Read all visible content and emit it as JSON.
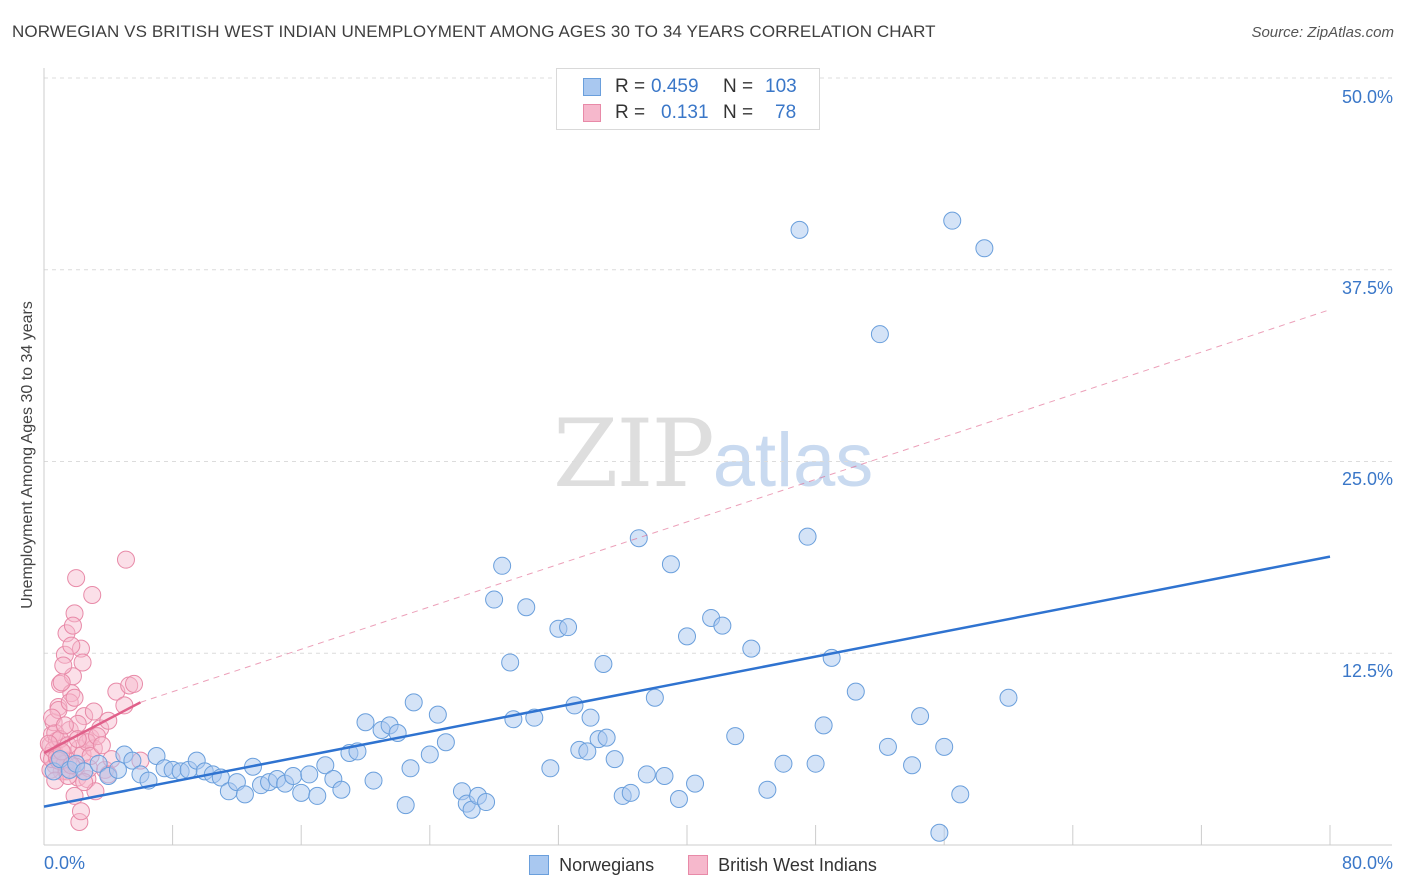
{
  "header": {
    "title": "NORWEGIAN VS BRITISH WEST INDIAN UNEMPLOYMENT AMONG AGES 30 TO 34 YEARS CORRELATION CHART",
    "source": "Source: ZipAtlas.com"
  },
  "watermark": {
    "part1": "ZIP",
    "part2": "atlas"
  },
  "legend_top": {
    "rows": [
      {
        "r_label": "R =",
        "r_value": "0.459",
        "n_label": "N =",
        "n_value": "103"
      },
      {
        "r_label": "R =",
        "r_value": "0.131",
        "n_label": "N =",
        "n_value": "78"
      }
    ]
  },
  "legend_bottom": {
    "series1": "Norwegians",
    "series2": "British West Indians"
  },
  "axis": {
    "y_title": "Unemployment Among Ages 30 to 34 years",
    "x_min_label": "0.0%",
    "x_max_label": "80.0%",
    "y_ticks": [
      "50.0%",
      "37.5%",
      "25.0%",
      "12.5%"
    ]
  },
  "colors": {
    "blue_fill": "#a9c8f0",
    "blue_stroke": "#6a9fdc",
    "blue_line": "#2f73d0",
    "pink_fill": "#f6b8cc",
    "pink_stroke": "#e88aa8",
    "pink_line": "#e0608a",
    "text_accent": "#3a77c8"
  },
  "chart_data": {
    "type": "scatter",
    "title": "NORWEGIAN VS BRITISH WEST INDIAN UNEMPLOYMENT AMONG AGES 30 TO 34 YEARS CORRELATION CHART",
    "xlabel": "",
    "ylabel": "Unemployment Among Ages 30 to 34 years",
    "xlim": [
      0,
      80
    ],
    "ylim": [
      0,
      50
    ],
    "y_gridlines": [
      12.5,
      25.0,
      37.5,
      50.0
    ],
    "grid": "horizontal dashed",
    "series": [
      {
        "name": "Norwegians",
        "R": 0.459,
        "N": 103,
        "trend": {
          "x": [
            0,
            80
          ],
          "y": [
            2.5,
            18.8
          ],
          "style": "solid"
        },
        "points": [
          [
            0.6,
            4.8
          ],
          [
            1.0,
            5.6
          ],
          [
            1.6,
            4.9
          ],
          [
            2.0,
            5.3
          ],
          [
            2.5,
            4.8
          ],
          [
            3.4,
            5.3
          ],
          [
            4.0,
            4.5
          ],
          [
            4.6,
            4.9
          ],
          [
            5.0,
            5.9
          ],
          [
            5.5,
            5.5
          ],
          [
            6.0,
            4.6
          ],
          [
            6.5,
            4.2
          ],
          [
            7.0,
            5.8
          ],
          [
            7.5,
            5.0
          ],
          [
            8.0,
            4.9
          ],
          [
            8.5,
            4.8
          ],
          [
            9.0,
            4.9
          ],
          [
            9.5,
            5.5
          ],
          [
            10.0,
            4.8
          ],
          [
            10.5,
            4.6
          ],
          [
            11.0,
            4.4
          ],
          [
            11.5,
            3.5
          ],
          [
            12.0,
            4.1
          ],
          [
            12.5,
            3.3
          ],
          [
            13.0,
            5.1
          ],
          [
            13.5,
            3.9
          ],
          [
            14.0,
            4.1
          ],
          [
            14.5,
            4.3
          ],
          [
            15.0,
            4.0
          ],
          [
            15.5,
            4.5
          ],
          [
            16.0,
            3.4
          ],
          [
            16.5,
            4.6
          ],
          [
            17.0,
            3.2
          ],
          [
            17.5,
            5.2
          ],
          [
            18.0,
            4.3
          ],
          [
            18.5,
            3.6
          ],
          [
            19.0,
            6.0
          ],
          [
            19.5,
            6.1
          ],
          [
            20.0,
            8.0
          ],
          [
            20.5,
            4.2
          ],
          [
            21.0,
            7.5
          ],
          [
            21.5,
            7.8
          ],
          [
            22.0,
            7.3
          ],
          [
            22.5,
            2.6
          ],
          [
            22.8,
            5.0
          ],
          [
            23.0,
            9.3
          ],
          [
            24.0,
            5.9
          ],
          [
            24.5,
            8.5
          ],
          [
            25.0,
            6.7
          ],
          [
            26.0,
            3.5
          ],
          [
            26.3,
            2.7
          ],
          [
            26.6,
            2.3
          ],
          [
            27.0,
            3.2
          ],
          [
            27.5,
            2.8
          ],
          [
            28.0,
            16.0
          ],
          [
            28.5,
            18.2
          ],
          [
            29.0,
            11.9
          ],
          [
            29.2,
            8.2
          ],
          [
            30.0,
            15.5
          ],
          [
            30.5,
            8.3
          ],
          [
            31.5,
            5.0
          ],
          [
            32.0,
            14.1
          ],
          [
            32.6,
            14.2
          ],
          [
            33.0,
            9.1
          ],
          [
            33.3,
            6.2
          ],
          [
            34.0,
            8.3
          ],
          [
            34.5,
            6.9
          ],
          [
            34.8,
            11.8
          ],
          [
            35.0,
            7.0
          ],
          [
            35.5,
            5.6
          ],
          [
            36.0,
            3.2
          ],
          [
            36.5,
            3.4
          ],
          [
            37.0,
            20.0
          ],
          [
            37.5,
            4.6
          ],
          [
            38.0,
            9.6
          ],
          [
            38.6,
            4.5
          ],
          [
            39.0,
            18.3
          ],
          [
            39.5,
            3.0
          ],
          [
            40.0,
            13.6
          ],
          [
            40.5,
            4.0
          ],
          [
            41.5,
            14.8
          ],
          [
            42.2,
            14.3
          ],
          [
            43.0,
            7.1
          ],
          [
            44.0,
            12.8
          ],
          [
            45.0,
            3.6
          ],
          [
            46.0,
            5.3
          ],
          [
            47.0,
            40.1
          ],
          [
            47.5,
            20.1
          ],
          [
            48.0,
            5.3
          ],
          [
            48.5,
            7.8
          ],
          [
            49.0,
            12.2
          ],
          [
            50.5,
            10.0
          ],
          [
            52.0,
            33.3
          ],
          [
            52.5,
            6.4
          ],
          [
            54.0,
            5.2
          ],
          [
            54.5,
            8.4
          ],
          [
            56.0,
            6.4
          ],
          [
            56.5,
            40.7
          ],
          [
            57.0,
            3.3
          ],
          [
            58.5,
            38.9
          ],
          [
            60.0,
            9.6
          ],
          [
            55.7,
            0.8
          ],
          [
            33.8,
            6.1
          ]
        ]
      },
      {
        "name": "British West Indians",
        "R": 0.131,
        "N": 78,
        "trend": {
          "x": [
            0,
            6
          ],
          "y": [
            6.0,
            9.3
          ],
          "style": "solid",
          "extension": {
            "x": [
              6,
              80
            ],
            "y": [
              9.3,
              34.9
            ],
            "style": "dashed"
          }
        },
        "points": [
          [
            0.3,
            5.8
          ],
          [
            0.4,
            6.5
          ],
          [
            0.5,
            7.2
          ],
          [
            0.6,
            8.0
          ],
          [
            0.7,
            5.2
          ],
          [
            0.8,
            6.8
          ],
          [
            0.9,
            9.0
          ],
          [
            1.0,
            10.5
          ],
          [
            1.1,
            4.8
          ],
          [
            1.2,
            6.0
          ],
          [
            1.3,
            12.4
          ],
          [
            1.4,
            13.8
          ],
          [
            1.5,
            5.5
          ],
          [
            1.6,
            7.5
          ],
          [
            1.7,
            9.9
          ],
          [
            1.8,
            11.0
          ],
          [
            1.9,
            15.1
          ],
          [
            2.0,
            17.4
          ],
          [
            2.1,
            4.4
          ],
          [
            2.2,
            6.3
          ],
          [
            2.3,
            12.8
          ],
          [
            2.4,
            5.9
          ],
          [
            2.5,
            8.4
          ],
          [
            2.6,
            6.9
          ],
          [
            2.7,
            4.3
          ],
          [
            2.8,
            5.0
          ],
          [
            2.9,
            7.0
          ],
          [
            3.0,
            16.3
          ],
          [
            3.1,
            6.3
          ],
          [
            3.2,
            3.5
          ],
          [
            3.5,
            7.6
          ],
          [
            3.8,
            4.9
          ],
          [
            4.0,
            8.1
          ],
          [
            4.2,
            5.6
          ],
          [
            4.5,
            10.0
          ],
          [
            5.0,
            9.1
          ],
          [
            5.1,
            18.6
          ],
          [
            5.3,
            10.4
          ],
          [
            5.6,
            10.5
          ],
          [
            6.0,
            5.5
          ],
          [
            0.4,
            4.9
          ],
          [
            0.5,
            5.6
          ],
          [
            0.6,
            6.2
          ],
          [
            0.7,
            7.3
          ],
          [
            0.8,
            5.7
          ],
          [
            0.9,
            8.8
          ],
          [
            1.0,
            6.9
          ],
          [
            1.1,
            10.6
          ],
          [
            1.2,
            11.7
          ],
          [
            1.3,
            5.3
          ],
          [
            1.4,
            4.8
          ],
          [
            1.5,
            6.5
          ],
          [
            1.6,
            9.3
          ],
          [
            1.7,
            13.0
          ],
          [
            1.8,
            14.3
          ],
          [
            1.9,
            3.2
          ],
          [
            2.0,
            5.1
          ],
          [
            2.1,
            7.9
          ],
          [
            2.2,
            1.5
          ],
          [
            2.3,
            2.2
          ],
          [
            2.5,
            4.1
          ],
          [
            2.7,
            6.7
          ],
          [
            2.9,
            5.8
          ],
          [
            3.1,
            8.7
          ],
          [
            3.3,
            7.1
          ],
          [
            3.6,
            6.5
          ],
          [
            4.0,
            4.6
          ],
          [
            0.3,
            6.6
          ],
          [
            0.5,
            8.3
          ],
          [
            0.7,
            4.2
          ],
          [
            0.9,
            5.5
          ],
          [
            1.1,
            6.1
          ],
          [
            1.3,
            7.8
          ],
          [
            1.5,
            4.5
          ],
          [
            1.7,
            5.2
          ],
          [
            1.9,
            9.6
          ],
          [
            2.1,
            6.9
          ],
          [
            2.4,
            11.9
          ]
        ]
      }
    ]
  }
}
